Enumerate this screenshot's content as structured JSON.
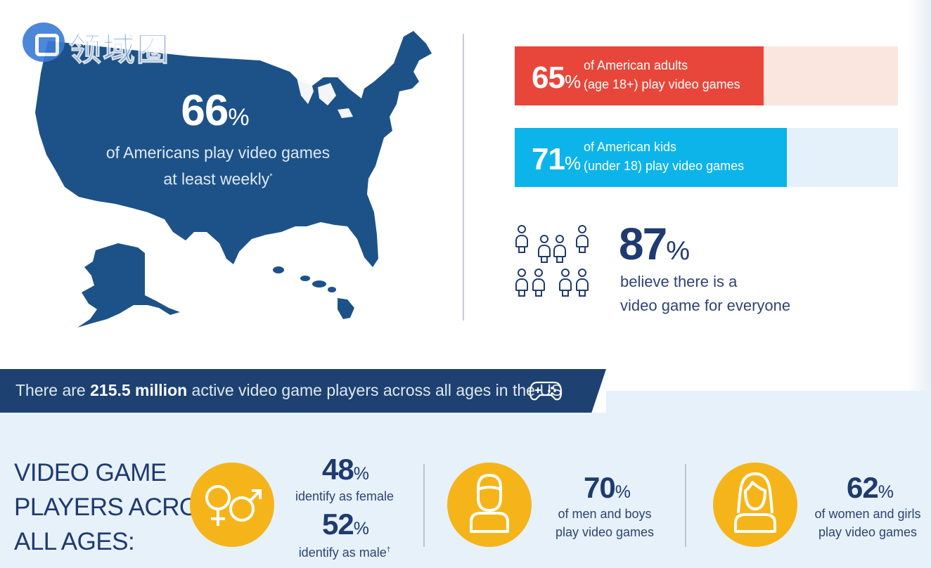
{
  "watermark": {
    "text": "领域圈"
  },
  "map": {
    "value": "66",
    "unit": "%",
    "line1": "of Americans play video games",
    "line2": "at least weekly",
    "footnote": "*"
  },
  "stats": {
    "adults": {
      "value": "65",
      "unit": "%",
      "line1": "of American adults",
      "line2": "(age 18+) play video games",
      "fraction": 0.65,
      "color": "#e8463a"
    },
    "kids": {
      "value": "71",
      "unit": "%",
      "line1": "of American kids",
      "line2": "(under 18) play video games",
      "fraction": 0.71,
      "color": "#0db4ea"
    },
    "everyone": {
      "value": "87",
      "unit": "%",
      "line1": "believe there is a",
      "line2": "video game for everyone",
      "icon": "people-group-icon"
    }
  },
  "banner": {
    "pre": "There are ",
    "bold": "215.5 million",
    "post": " active video game players across all ages in the US",
    "icon": "gamepad-icon"
  },
  "players": {
    "title_line1": "VIDEO GAME",
    "title_line2": "PLAYERS ACROSS",
    "title_line3": "ALL AGES:",
    "female": {
      "value": "48",
      "unit": "%",
      "label": "identify as female"
    },
    "male": {
      "value": "52",
      "unit": "%",
      "label": "identify as male",
      "footnote": "†"
    },
    "men": {
      "value": "70",
      "unit": "%",
      "line1": "of men and boys",
      "line2": "play video games",
      "icon": "man-icon"
    },
    "women": {
      "value": "62",
      "unit": "%",
      "line1": "of women and girls",
      "line2": "play video games",
      "icon": "woman-icon"
    },
    "gender_icon": "gender-symbols-icon"
  },
  "colors": {
    "navy": "#1d4170",
    "accent": "#f5b51a",
    "red": "#e8463a",
    "cyan": "#0db4ea"
  }
}
